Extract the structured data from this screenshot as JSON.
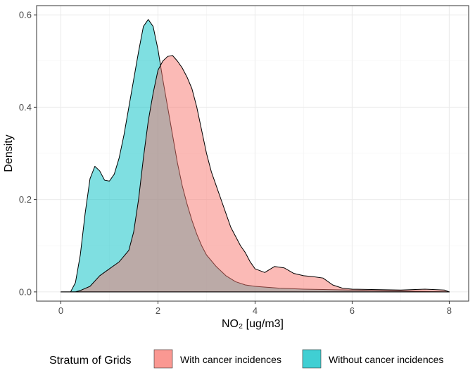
{
  "chart_data": {
    "type": "area",
    "xlabel": "NO₂ [ug/m3]",
    "ylabel": "Density",
    "xlim": [
      -0.5,
      8.4
    ],
    "ylim": [
      -0.02,
      0.62
    ],
    "x_ticks": [
      0,
      2,
      4,
      6,
      8
    ],
    "y_ticks": [
      0.0,
      0.2,
      0.4,
      0.6
    ],
    "x_tick_labels": [
      "0",
      "2",
      "4",
      "6",
      "8"
    ],
    "y_tick_labels": [
      "0.0",
      "0.2",
      "0.4",
      "0.6"
    ],
    "grid": true,
    "legend": {
      "title": "Stratum of Grids",
      "position": "bottom"
    },
    "series": [
      {
        "name": "Without cancer incidences",
        "color": "#00bfc4",
        "points": [
          [
            0.0,
            0.0
          ],
          [
            0.2,
            0.0
          ],
          [
            0.3,
            0.02
          ],
          [
            0.4,
            0.08
          ],
          [
            0.5,
            0.17
          ],
          [
            0.6,
            0.245
          ],
          [
            0.7,
            0.272
          ],
          [
            0.8,
            0.262
          ],
          [
            0.9,
            0.242
          ],
          [
            1.0,
            0.24
          ],
          [
            1.1,
            0.255
          ],
          [
            1.2,
            0.29
          ],
          [
            1.3,
            0.34
          ],
          [
            1.4,
            0.4
          ],
          [
            1.5,
            0.46
          ],
          [
            1.6,
            0.52
          ],
          [
            1.7,
            0.575
          ],
          [
            1.8,
            0.59
          ],
          [
            1.9,
            0.575
          ],
          [
            2.0,
            0.525
          ],
          [
            2.1,
            0.46
          ],
          [
            2.2,
            0.4
          ],
          [
            2.3,
            0.34
          ],
          [
            2.4,
            0.28
          ],
          [
            2.5,
            0.23
          ],
          [
            2.6,
            0.19
          ],
          [
            2.7,
            0.155
          ],
          [
            2.8,
            0.125
          ],
          [
            2.9,
            0.1
          ],
          [
            3.0,
            0.08
          ],
          [
            3.2,
            0.055
          ],
          [
            3.4,
            0.035
          ],
          [
            3.6,
            0.022
          ],
          [
            3.8,
            0.015
          ],
          [
            4.0,
            0.012
          ],
          [
            4.5,
            0.008
          ],
          [
            5.0,
            0.006
          ],
          [
            6.0,
            0.004
          ],
          [
            7.0,
            0.002
          ],
          [
            8.0,
            0.0
          ]
        ]
      },
      {
        "name": "With cancer incidences",
        "color": "#f8766d",
        "points": [
          [
            0.0,
            0.0
          ],
          [
            0.3,
            0.0
          ],
          [
            0.4,
            0.003
          ],
          [
            0.6,
            0.012
          ],
          [
            0.8,
            0.035
          ],
          [
            1.0,
            0.05
          ],
          [
            1.2,
            0.065
          ],
          [
            1.4,
            0.09
          ],
          [
            1.5,
            0.13
          ],
          [
            1.6,
            0.2
          ],
          [
            1.7,
            0.29
          ],
          [
            1.8,
            0.37
          ],
          [
            1.9,
            0.43
          ],
          [
            2.0,
            0.48
          ],
          [
            2.1,
            0.5
          ],
          [
            2.2,
            0.51
          ],
          [
            2.3,
            0.512
          ],
          [
            2.4,
            0.5
          ],
          [
            2.5,
            0.485
          ],
          [
            2.6,
            0.465
          ],
          [
            2.7,
            0.44
          ],
          [
            2.8,
            0.4
          ],
          [
            2.9,
            0.35
          ],
          [
            3.0,
            0.3
          ],
          [
            3.1,
            0.26
          ],
          [
            3.2,
            0.23
          ],
          [
            3.3,
            0.2
          ],
          [
            3.4,
            0.17
          ],
          [
            3.5,
            0.14
          ],
          [
            3.6,
            0.12
          ],
          [
            3.7,
            0.1
          ],
          [
            3.8,
            0.085
          ],
          [
            3.9,
            0.065
          ],
          [
            4.0,
            0.05
          ],
          [
            4.2,
            0.042
          ],
          [
            4.4,
            0.055
          ],
          [
            4.6,
            0.052
          ],
          [
            4.8,
            0.04
          ],
          [
            5.0,
            0.035
          ],
          [
            5.2,
            0.033
          ],
          [
            5.4,
            0.03
          ],
          [
            5.6,
            0.015
          ],
          [
            5.8,
            0.008
          ],
          [
            6.0,
            0.006
          ],
          [
            6.5,
            0.005
          ],
          [
            7.0,
            0.004
          ],
          [
            7.5,
            0.006
          ],
          [
            7.9,
            0.004
          ],
          [
            8.0,
            0.0
          ]
        ]
      }
    ]
  }
}
